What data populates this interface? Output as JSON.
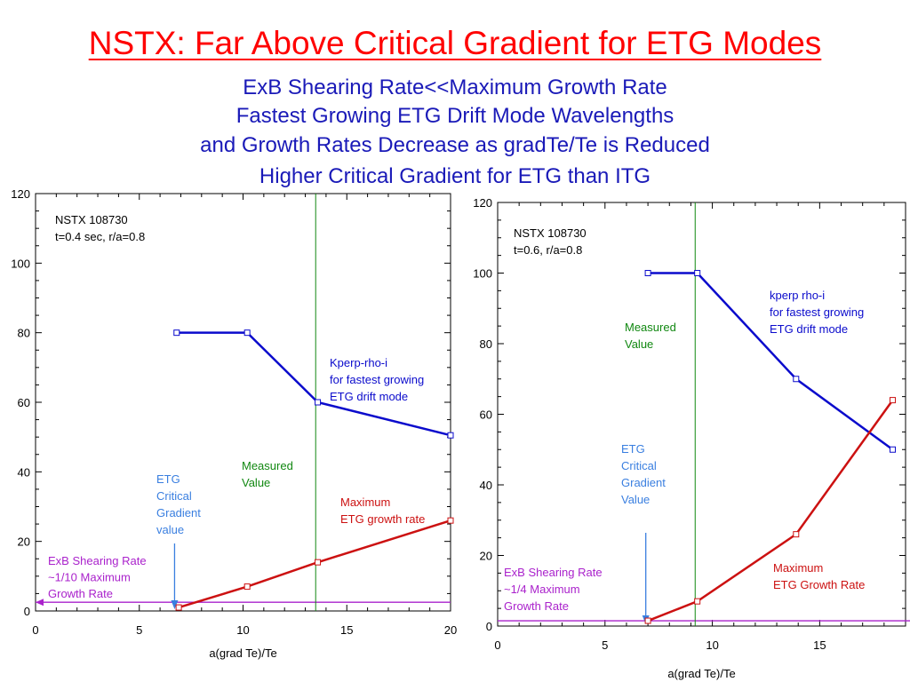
{
  "slide": {
    "title": "NSTX: Far Above Critical Gradient for ETG Modes",
    "subtitle_lines": [
      "ExB Shearing Rate<<Maximum Growth Rate",
      "Fastest Growing ETG Drift Mode Wavelengths",
      "and Growth Rates Decrease as gradTe/Te is Reduced",
      "Higher Critical Gradient for ETG than ITG"
    ]
  },
  "colors": {
    "title": "#ff0000",
    "subtitle": "#1a1ab8",
    "kperp_series": "#0b0bcc",
    "growth_series": "#cc1111",
    "measured_line": "#118811",
    "critical_arrow": "#3a7fe0",
    "exb_line": "#aa22cc"
  },
  "chart_data": [
    {
      "type": "line",
      "xlabel": "a(grad Te)/Te",
      "ylabel": "",
      "xlim": [
        0,
        20
      ],
      "ylim": [
        0,
        120
      ],
      "x_ticks": [
        0,
        5,
        10,
        15,
        20
      ],
      "y_ticks": [
        0,
        20,
        40,
        60,
        80,
        100,
        120
      ],
      "grid": false,
      "annotations": {
        "info_line1": "NSTX 108730",
        "info_line2": "t=0.4 sec, r/a=0.8",
        "kperp": [
          "Kperp-rho-i",
          "for fastest growing",
          "ETG drift mode"
        ],
        "measured": [
          "Measured",
          "Value"
        ],
        "critical": [
          "ETG",
          "Critical",
          "Gradient",
          "value"
        ],
        "growth": [
          "Maximum",
          "ETG growth rate"
        ],
        "exb": [
          "ExB Shearing Rate",
          "~1/10 Maximum",
          "Growth Rate"
        ]
      },
      "series": [
        {
          "key": "kperp",
          "x": [
            6.8,
            10.2,
            13.6,
            20
          ],
          "y": [
            80,
            80,
            60,
            50.5
          ]
        },
        {
          "key": "growth",
          "x": [
            6.9,
            10.2,
            13.6,
            20
          ],
          "y": [
            1,
            7,
            14,
            26
          ]
        }
      ],
      "measured_x": 13.5,
      "critical_x": 6.7,
      "exb_y": 2.5
    },
    {
      "type": "line",
      "xlabel": "a(grad Te)/Te",
      "ylabel": "",
      "xlim": [
        0,
        19
      ],
      "ylim": [
        0,
        120
      ],
      "x_ticks": [
        0,
        5,
        10,
        15
      ],
      "y_ticks": [
        0,
        20,
        40,
        60,
        80,
        100,
        120
      ],
      "grid": false,
      "annotations": {
        "info_line1": "NSTX 108730",
        "info_line2": "t=0.6, r/a=0.8",
        "kperp": [
          "kperp rho-i",
          "for fastest growing",
          "ETG drift mode"
        ],
        "measured": [
          "Measured",
          "Value"
        ],
        "critical": [
          "ETG",
          "Critical",
          "Gradient",
          "Value"
        ],
        "growth": [
          "Maximum",
          "ETG Growth Rate"
        ],
        "exb": [
          "ExB Shearing Rate",
          "~1/4 Maximum",
          "Growth Rate"
        ]
      },
      "series": [
        {
          "key": "kperp",
          "x": [
            7,
            9.3,
            13.9,
            18.4
          ],
          "y": [
            100,
            100,
            70,
            50
          ]
        },
        {
          "key": "growth",
          "x": [
            7,
            9.3,
            13.9,
            18.4
          ],
          "y": [
            1.5,
            7,
            26,
            64
          ]
        }
      ],
      "measured_x": 9.2,
      "critical_x": 6.9,
      "exb_y": 1.5
    }
  ]
}
